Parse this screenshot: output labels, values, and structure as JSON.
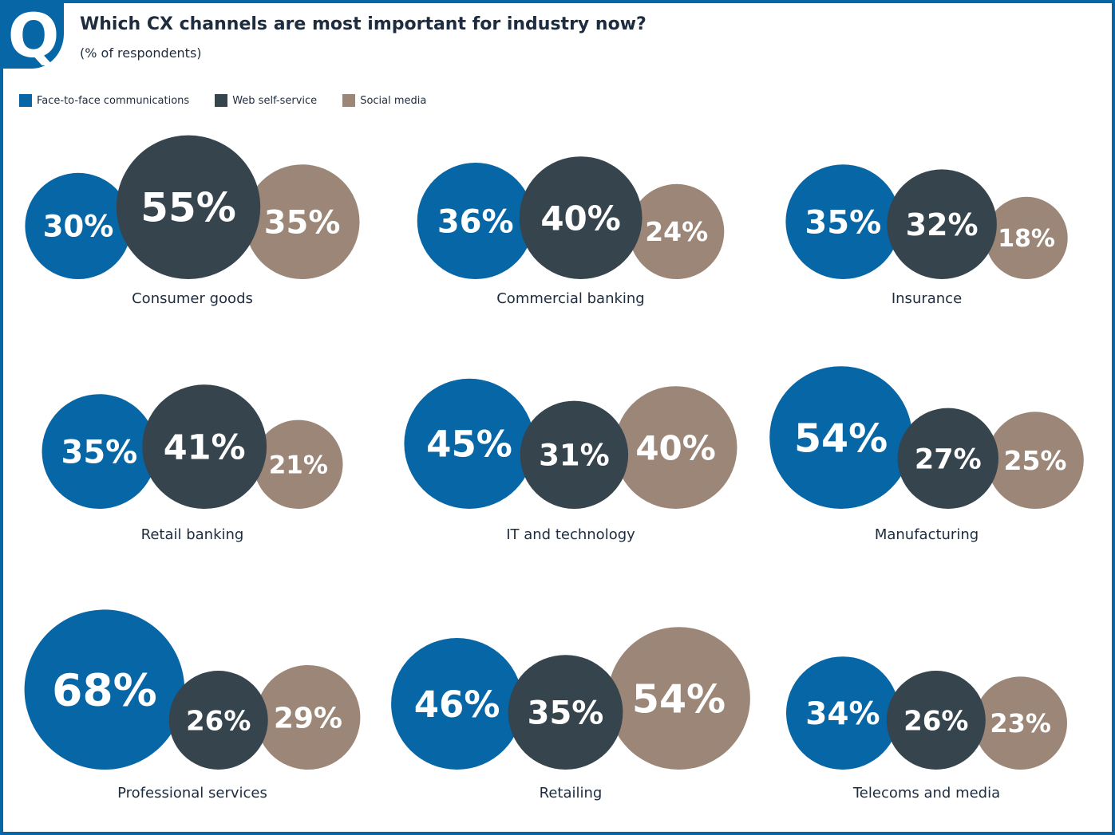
{
  "badge": "Q",
  "title": "Which CX channels are most important for industry now?",
  "subtitle": "(% of respondents)",
  "colors": {
    "face_to_face": "#0766a6",
    "web_self_service": "#36444d",
    "social_media": "#9b8678",
    "frame": "#0766a6"
  },
  "legend": [
    {
      "label": "Face-to-face communications",
      "color": "#0766a6"
    },
    {
      "label": "Web self-service",
      "color": "#36444d"
    },
    {
      "label": "Social media",
      "color": "#9b8678"
    }
  ],
  "chart_data": {
    "type": "bubble",
    "series": [
      {
        "name": "Face-to-face communications"
      },
      {
        "name": "Web self-service"
      },
      {
        "name": "Social media"
      }
    ],
    "industries": [
      {
        "label": "Consumer goods",
        "values": [
          30,
          55,
          35
        ]
      },
      {
        "label": "Commercial banking",
        "values": [
          36,
          40,
          24
        ]
      },
      {
        "label": "Insurance",
        "values": [
          35,
          32,
          18
        ]
      },
      {
        "label": "Retail banking",
        "values": [
          35,
          41,
          21
        ]
      },
      {
        "label": "IT and technology",
        "values": [
          45,
          31,
          40
        ]
      },
      {
        "label": "Manufacturing",
        "values": [
          54,
          27,
          25
        ]
      },
      {
        "label": "Professional services",
        "values": [
          68,
          26,
          29
        ]
      },
      {
        "label": "Retailing",
        "values": [
          46,
          35,
          54
        ]
      },
      {
        "label": "Telecoms and media",
        "values": [
          34,
          26,
          23
        ]
      }
    ],
    "value_suffix": "%"
  }
}
